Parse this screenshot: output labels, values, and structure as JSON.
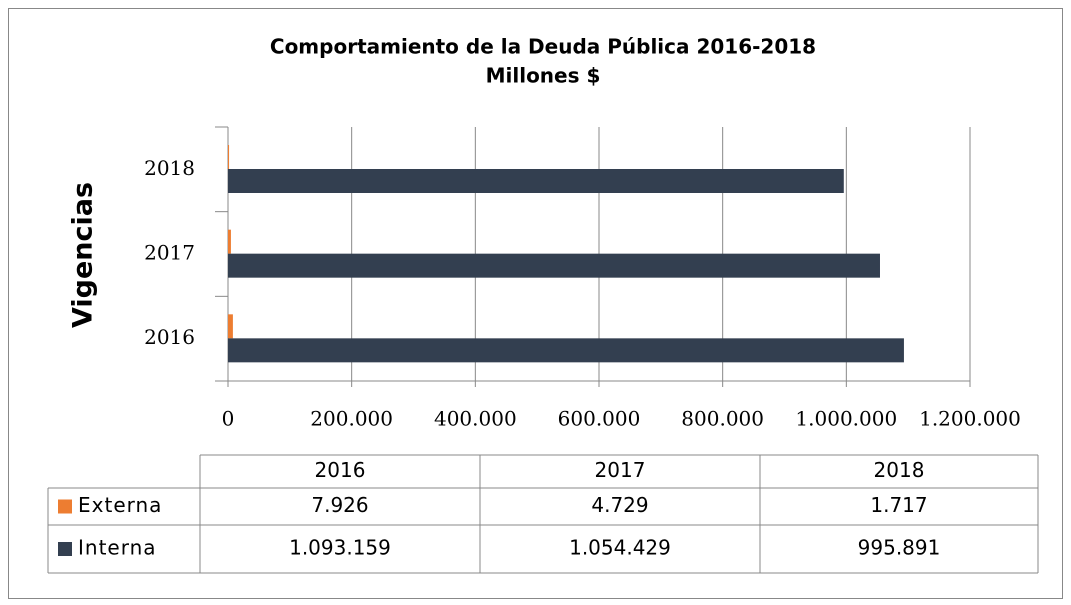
{
  "chart_data": {
    "type": "bar",
    "orientation": "horizontal",
    "title": "Comportamiento  de la Deuda Pública 2016-2018",
    "subtitle": "Millones  $",
    "y_label": "Vigencias",
    "categories": [
      "2016",
      "2017",
      "2018"
    ],
    "series": [
      {
        "name": "Externa",
        "color": "#ed7d31",
        "values": [
          7926,
          4729,
          1717
        ],
        "value_labels": [
          "7.926",
          "4.729",
          "1.717"
        ]
      },
      {
        "name": "Interna",
        "color": "#333f50",
        "values": [
          1093159,
          1054429,
          995891
        ],
        "value_labels": [
          "1.093.159",
          "1.054.429",
          "995.891"
        ]
      }
    ],
    "xlim": [
      0,
      1200000
    ],
    "xticks": [
      0,
      {
        "value": 200000,
        "label": "200.000"
      },
      {
        "value": 400000,
        "label": "400.000"
      },
      {
        "value": 600000,
        "label": "600.000"
      },
      {
        "value": 800000,
        "label": "800.000"
      },
      {
        "value": 1000000,
        "label": "1.000.000"
      },
      {
        "value": 1200000,
        "label": "1.200.000"
      }
    ],
    "grid": true
  }
}
